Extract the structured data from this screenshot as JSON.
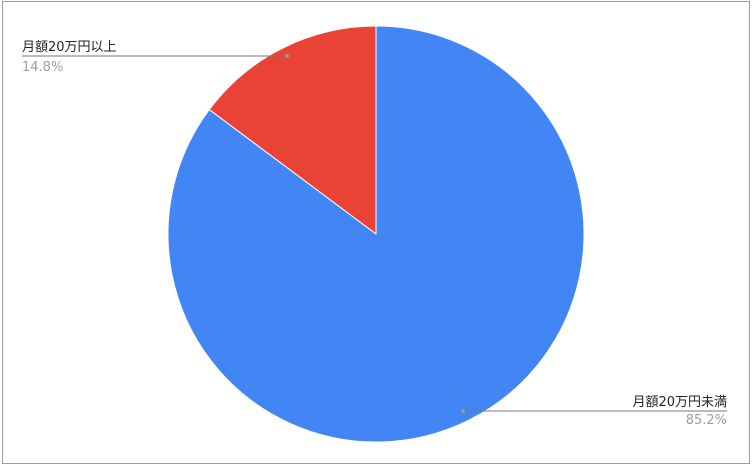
{
  "chart_data": {
    "type": "pie",
    "title": "",
    "slices": [
      {
        "label": "月額20万円以上",
        "value": 14.8,
        "value_label": "14.8%",
        "color": "#ea4335"
      },
      {
        "label": "月額20万円未満",
        "value": 85.2,
        "value_label": "85.2%",
        "color": "#4285f4"
      }
    ],
    "start_angle": "12 o'clock",
    "direction": "counterclockwise from top for first slice",
    "legend": "none (leader-line labels)"
  }
}
